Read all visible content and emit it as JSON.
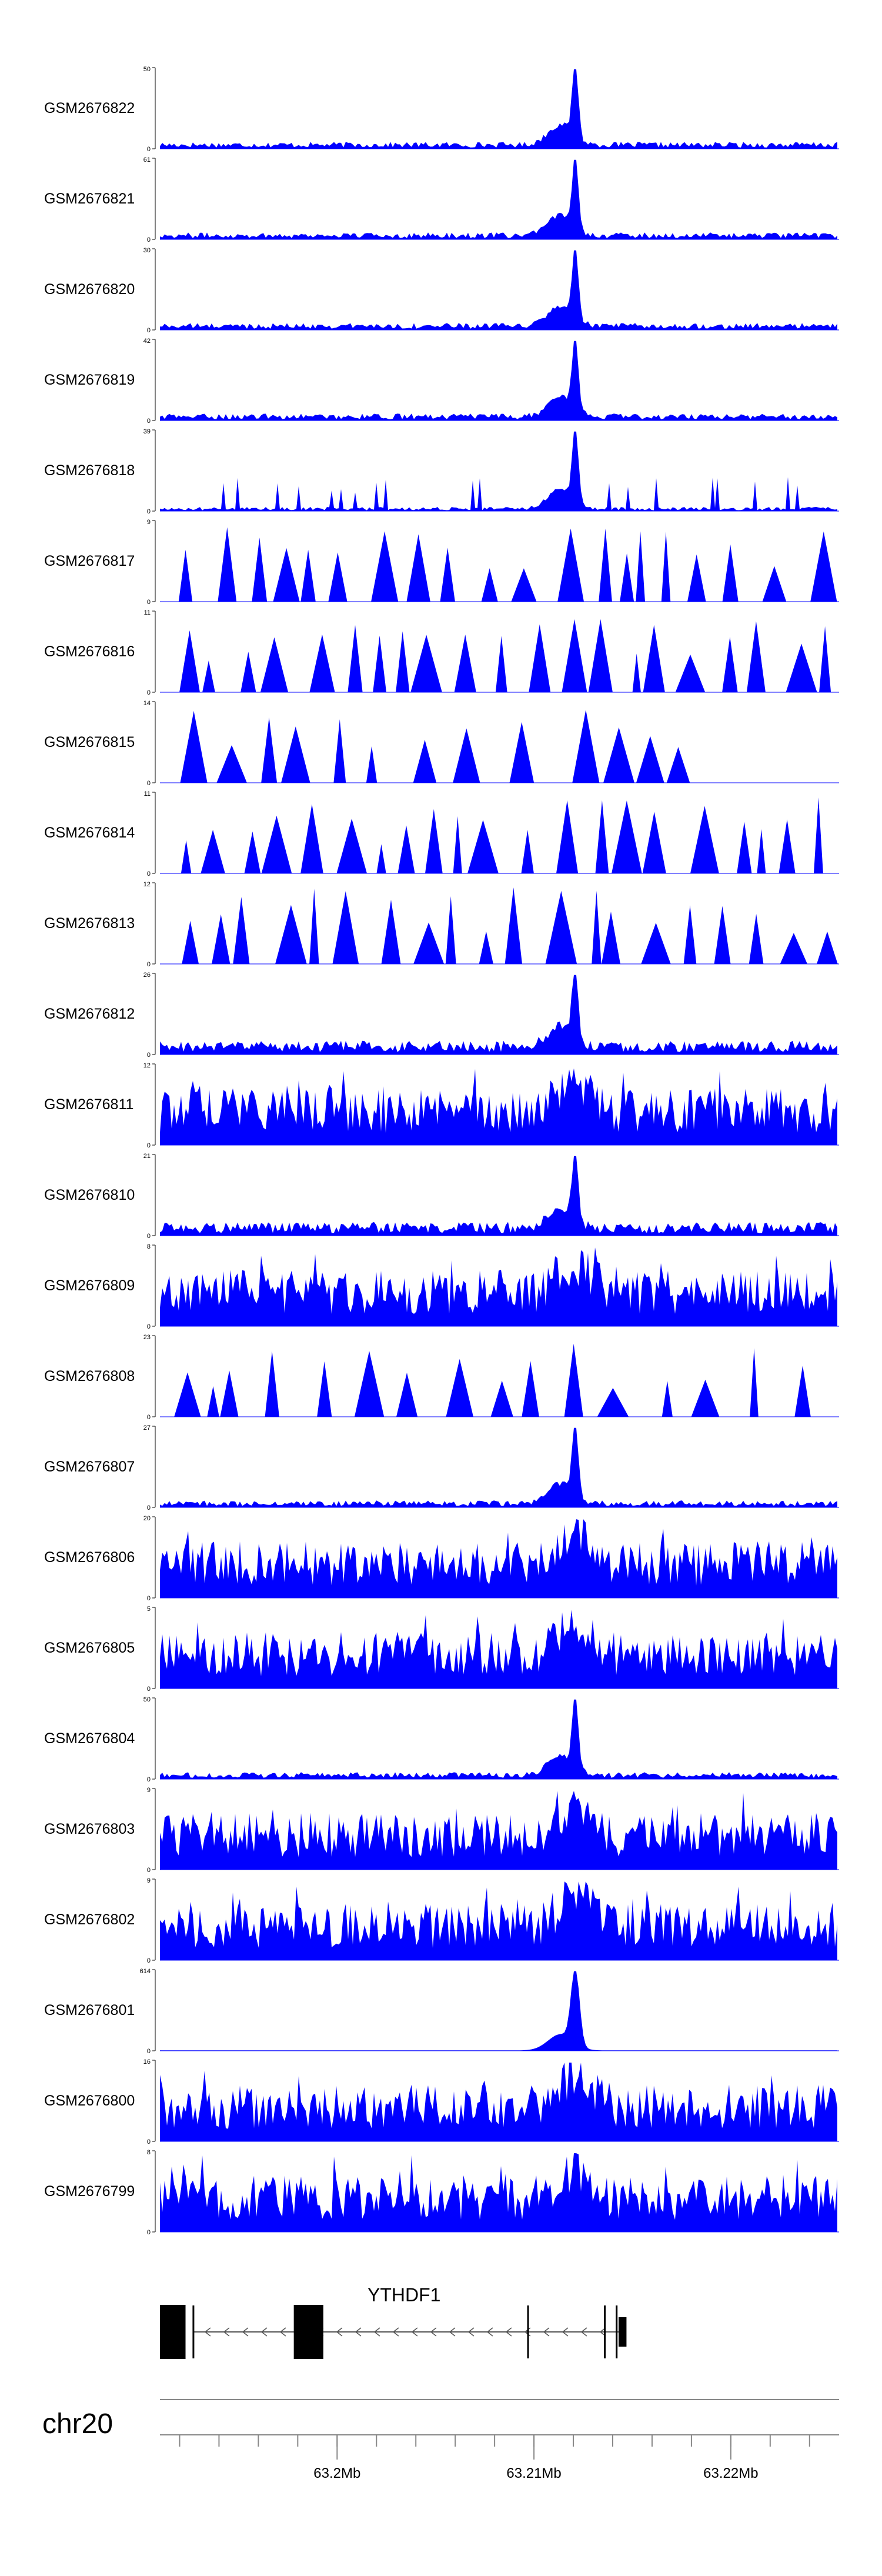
{
  "chart_data": {
    "type": "area",
    "chromosome": "chr20",
    "x_range_mb": [
      63.191,
      63.2255
    ],
    "x_ticks_mb": [
      63.2,
      63.21,
      63.22
    ],
    "x_tick_labels": [
      "63.2Mb",
      "63.21Mb",
      "63.22Mb"
    ],
    "minor_tick_spacing_mb": 0.002,
    "peak_position_mb": 63.2121,
    "fill_color": "#0000ff",
    "tracks": [
      {
        "name": "GSM2676822",
        "ymax": "50",
        "ymin": "0",
        "style": "peaky-low-bg"
      },
      {
        "name": "GSM2676821",
        "ymax": "61",
        "ymin": "0",
        "style": "peaky-low-bg"
      },
      {
        "name": "GSM2676820",
        "ymax": "30",
        "ymin": "0",
        "style": "peaky-low-bg"
      },
      {
        "name": "GSM2676819",
        "ymax": "42",
        "ymin": "0",
        "style": "peaky-low-bg"
      },
      {
        "name": "GSM2676818",
        "ymax": "39",
        "ymin": "0",
        "style": "sparse-peak"
      },
      {
        "name": "GSM2676817",
        "ymax": "9",
        "ymin": "0",
        "style": "triangles"
      },
      {
        "name": "GSM2676816",
        "ymax": "11",
        "ymin": "0",
        "style": "triangles"
      },
      {
        "name": "GSM2676815",
        "ymax": "14",
        "ymin": "0",
        "style": "triangles-short"
      },
      {
        "name": "GSM2676814",
        "ymax": "11",
        "ymin": "0",
        "style": "triangles"
      },
      {
        "name": "GSM2676813",
        "ymax": "12",
        "ymin": "0",
        "style": "triangles"
      },
      {
        "name": "GSM2676812",
        "ymax": "26",
        "ymin": "0",
        "style": "peaky-mid-bg"
      },
      {
        "name": "GSM2676811",
        "ymax": "12",
        "ymin": "0",
        "style": "dense"
      },
      {
        "name": "GSM2676810",
        "ymax": "21",
        "ymin": "0",
        "style": "peaky-mid-bg"
      },
      {
        "name": "GSM2676809",
        "ymax": "8",
        "ymin": "0",
        "style": "dense"
      },
      {
        "name": "GSM2676808",
        "ymax": "23",
        "ymin": "0",
        "style": "triangles-short"
      },
      {
        "name": "GSM2676807",
        "ymax": "27",
        "ymin": "0",
        "style": "peaky-low-bg"
      },
      {
        "name": "GSM2676806",
        "ymax": "20",
        "ymin": "0",
        "style": "dense"
      },
      {
        "name": "GSM2676805",
        "ymax": "5",
        "ymin": "0",
        "style": "dense"
      },
      {
        "name": "GSM2676804",
        "ymax": "50",
        "ymin": "0",
        "style": "peaky-low-bg"
      },
      {
        "name": "GSM2676803",
        "ymax": "9",
        "ymin": "0",
        "style": "dense"
      },
      {
        "name": "GSM2676802",
        "ymax": "9",
        "ymin": "0",
        "style": "dense"
      },
      {
        "name": "GSM2676801",
        "ymax": "614",
        "ymin": "0",
        "style": "single-peak"
      },
      {
        "name": "GSM2676800",
        "ymax": "16",
        "ymin": "0",
        "style": "dense"
      },
      {
        "name": "GSM2676799",
        "ymax": "8",
        "ymin": "0",
        "style": "dense"
      }
    ],
    "gene": {
      "name": "YTHDF1",
      "strand": "-",
      "exons_mb": [
        [
          63.191,
          63.1923
        ],
        [
          63.1978,
          63.1993
        ],
        [
          63.2143,
          63.2147
        ]
      ],
      "thin_marks_mb": [
        63.1927,
        63.2097,
        63.2136,
        63.2142
      ],
      "intron_mb": [
        63.1927,
        63.2143
      ]
    }
  }
}
